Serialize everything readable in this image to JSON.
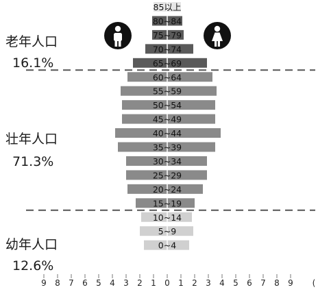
{
  "chart_data": {
    "type": "bar",
    "orientation": "horizontal-back-to-back",
    "title": "",
    "xlabel": "",
    "ylabel": "",
    "xlim": [
      -9,
      9
    ],
    "x_tick_labels": [
      "9",
      "8",
      "7",
      "6",
      "5",
      "4",
      "3",
      "2",
      "1",
      "0",
      "1",
      "2",
      "3",
      "4",
      "5",
      "6",
      "7",
      "8",
      "9"
    ],
    "x_unit_glyph": "(",
    "categories": [
      "85以上",
      "80~84",
      "75~79",
      "70~74",
      "65~69",
      "60~64",
      "55~59",
      "50~54",
      "45~49",
      "40~44",
      "35~39",
      "30~34",
      "25~29",
      "20~24",
      "15~19",
      "10~14",
      "5~9",
      "0~4"
    ],
    "series": [
      {
        "name": "男",
        "icon": "male-person-icon",
        "values": [
          1.0,
          1.1,
          1.1,
          1.6,
          2.5,
          2.9,
          3.4,
          3.3,
          3.3,
          3.8,
          3.6,
          3.0,
          3.0,
          2.9,
          2.3,
          1.9,
          2.0,
          1.7
        ]
      },
      {
        "name": "女",
        "icon": "female-person-icon",
        "values": [
          1.0,
          1.1,
          1.2,
          1.9,
          2.9,
          3.3,
          3.6,
          3.5,
          3.5,
          3.9,
          3.5,
          2.9,
          2.9,
          2.6,
          2.0,
          1.8,
          1.9,
          1.6
        ]
      }
    ],
    "bar_colors": [
      "#e6e6e6",
      "#5a5a5a",
      "#5a5a5a",
      "#5a5a5a",
      "#5a5a5a",
      "#8a8a8a",
      "#8a8a8a",
      "#8a8a8a",
      "#8a8a8a",
      "#8a8a8a",
      "#8a8a8a",
      "#8a8a8a",
      "#8a8a8a",
      "#8a8a8a",
      "#8a8a8a",
      "#d0d0d0",
      "#d0d0d0",
      "#d0d0d0"
    ],
    "groups": [
      {
        "label": "老年人口",
        "percent": "16.1%"
      },
      {
        "label": "壮年人口",
        "percent": "71.3%"
      },
      {
        "label": "幼年人口",
        "percent": "12.6%"
      }
    ],
    "divider_style": "dashed",
    "grid": false
  }
}
